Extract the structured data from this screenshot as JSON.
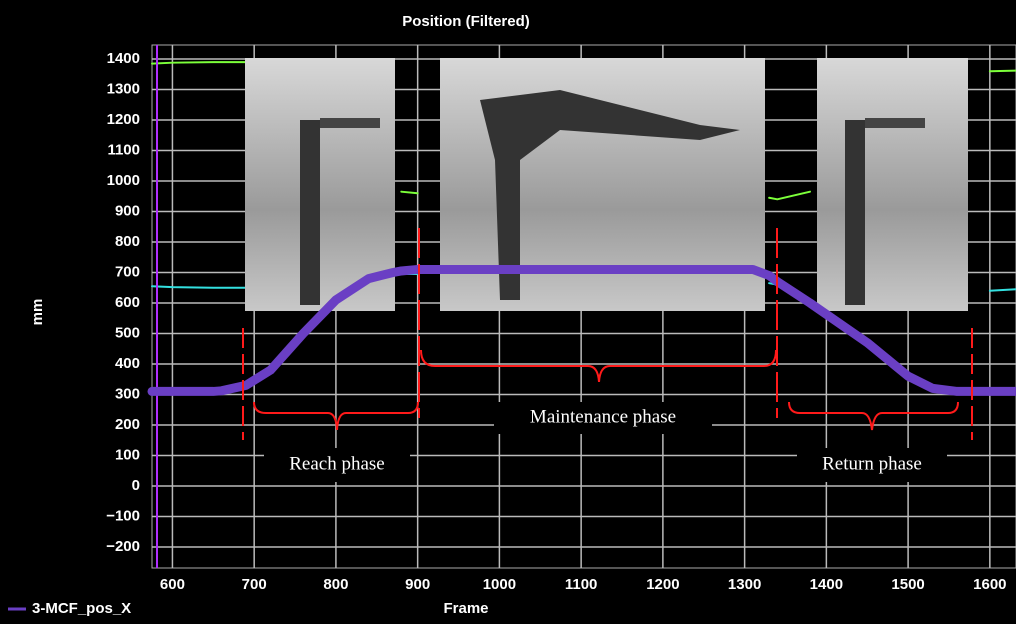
{
  "chart_data": {
    "type": "line",
    "title": "Position (Filtered)",
    "x_label": "Frame",
    "y_label": "mm",
    "x": [
      575,
      600,
      650,
      660,
      690,
      720,
      760,
      800,
      840,
      870,
      880,
      900,
      1000,
      1100,
      1200,
      1300,
      1310,
      1330,
      1340,
      1380,
      1450,
      1500,
      1530,
      1560,
      1600,
      1632
    ],
    "series": [
      {
        "color": "#7cff3a",
        "values": [
          1385,
          1388,
          1390,
          1390,
          1390,
          null,
          null,
          null,
          null,
          null,
          965,
          960,
          null,
          null,
          null,
          null,
          null,
          945,
          940,
          965,
          null,
          null,
          null,
          null,
          1360,
          1362
        ]
      },
      {
        "color": "#33e0e0",
        "values": [
          655,
          652,
          650,
          650,
          650,
          null,
          null,
          null,
          null,
          null,
          695,
          695,
          null,
          null,
          null,
          null,
          null,
          665,
          660,
          null,
          null,
          null,
          null,
          null,
          640,
          645
        ]
      },
      {
        "name": "3-MCF_pos_X",
        "color": "#6a3fc4",
        "values": [
          310,
          310,
          310,
          312,
          330,
          380,
          500,
          610,
          680,
          700,
          705,
          710,
          710,
          710,
          710,
          710,
          710,
          690,
          670,
          600,
          470,
          360,
          320,
          310,
          310,
          310
        ]
      }
    ],
    "xlim": [
      575,
      1632
    ],
    "ylim": [
      -269,
      1446
    ],
    "xticks": [
      600,
      700,
      800,
      900,
      1000,
      1100,
      1200,
      1300,
      1400,
      1500,
      1600
    ],
    "yticks": [
      {
        "value": -200,
        "label": "−200"
      },
      {
        "value": -100,
        "label": "−100"
      },
      0,
      100,
      200,
      300,
      400,
      500,
      600,
      700,
      800,
      900,
      1000,
      1100,
      1200,
      1300,
      1400
    ],
    "grid": true,
    "annotations": [
      "Reach phase",
      "Maintenance phase",
      "Return phase"
    ]
  }
}
